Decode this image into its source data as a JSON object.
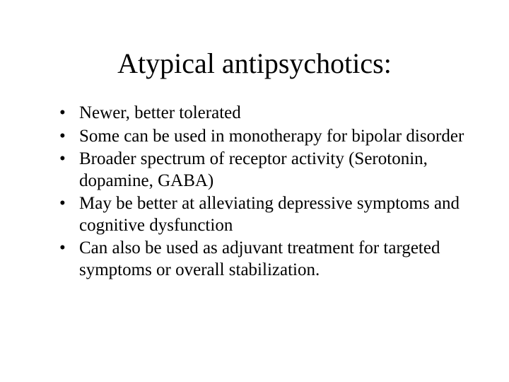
{
  "slide": {
    "title": "Atypical antipsychotics:",
    "bullets": [
      "Newer, better tolerated",
      "Some can be used in monotherapy for bipolar disorder",
      "Broader spectrum of receptor activity (Serotonin, dopamine, GABA)",
      "May be better at alleviating depressive symptoms and cognitive dysfunction",
      "Can also be used as adjuvant treatment for targeted symptoms or overall stabilization."
    ],
    "colors": {
      "background": "#ffffff",
      "text": "#000000"
    },
    "typography": {
      "family": "Times New Roman",
      "title_fontsize_pt": 40,
      "body_fontsize_pt": 25
    }
  }
}
